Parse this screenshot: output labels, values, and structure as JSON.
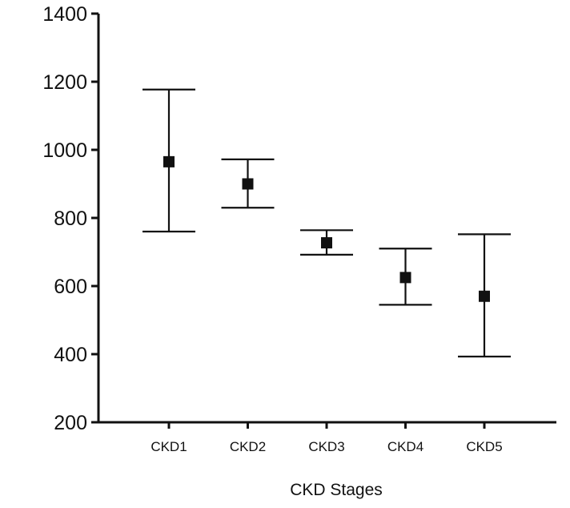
{
  "chart_data": {
    "type": "scatter",
    "title": "",
    "xlabel": "CKD Stages",
    "ylabel": "",
    "categories": [
      "CKD1",
      "CKD2",
      "CKD3",
      "CKD4",
      "CKD5"
    ],
    "series": [
      {
        "values": [
          965,
          900,
          727,
          625,
          570
        ],
        "lower": [
          760,
          830,
          692,
          545,
          393
        ],
        "upper": [
          1177,
          972,
          764,
          710,
          752
        ]
      }
    ],
    "ylim": [
      200,
      1400
    ],
    "yticks": [
      200,
      400,
      600,
      800,
      1000,
      1200,
      1400
    ],
    "grid": false,
    "legend": "none",
    "color": "#111111"
  }
}
